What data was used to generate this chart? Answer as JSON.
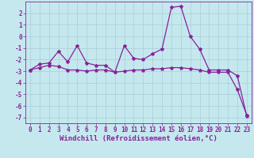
{
  "xlabel": "Windchill (Refroidissement éolien,°C)",
  "background_color": "#c5e8ef",
  "grid_color": "#a8cdd6",
  "line_color": "#882299",
  "x_ticks": [
    0,
    1,
    2,
    3,
    4,
    5,
    6,
    7,
    8,
    9,
    10,
    11,
    12,
    13,
    14,
    15,
    16,
    17,
    18,
    19,
    20,
    21,
    22,
    23
  ],
  "ylim": [
    -7.5,
    3.0
  ],
  "yticks": [
    -7,
    -6,
    -5,
    -4,
    -3,
    -2,
    -1,
    0,
    1,
    2
  ],
  "series1_x": [
    0,
    1,
    2,
    3,
    4,
    5,
    6,
    7,
    8,
    9,
    10,
    11,
    12,
    13,
    14,
    15,
    16,
    17,
    18,
    19,
    20,
    21,
    22,
    23
  ],
  "series1_y": [
    -2.9,
    -2.4,
    -2.3,
    -1.3,
    -2.2,
    -0.8,
    -2.3,
    -2.5,
    -2.5,
    -3.1,
    -0.8,
    -1.9,
    -2.0,
    -1.5,
    -1.1,
    2.5,
    2.6,
    0.0,
    -1.1,
    -2.9,
    -2.9,
    -2.9,
    -3.4,
    -6.9
  ],
  "series2_x": [
    0,
    1,
    2,
    3,
    4,
    5,
    6,
    7,
    8,
    9,
    10,
    11,
    12,
    13,
    14,
    15,
    16,
    17,
    18,
    19,
    20,
    21,
    22,
    23
  ],
  "series2_y": [
    -2.9,
    -2.7,
    -2.5,
    -2.6,
    -2.9,
    -2.9,
    -3.0,
    -2.9,
    -2.9,
    -3.1,
    -3.0,
    -2.9,
    -2.9,
    -2.8,
    -2.8,
    -2.7,
    -2.7,
    -2.8,
    -2.9,
    -3.1,
    -3.1,
    -3.1,
    -4.6,
    -6.8
  ],
  "markersize": 3,
  "linewidth": 0.9,
  "tick_fontsize": 5.5,
  "xlabel_fontsize": 6.5
}
